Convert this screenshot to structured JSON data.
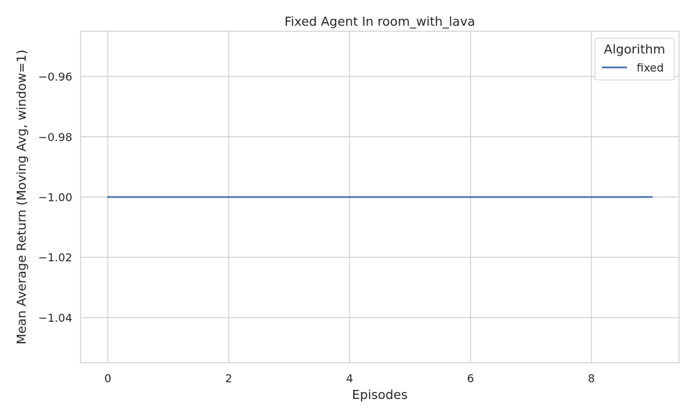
{
  "chart_data": {
    "type": "line",
    "title": "Fixed Agent In room_with_lava",
    "xlabel": "Episodes",
    "ylabel": "Mean Average Return (Moving Avg, window=1)",
    "xlim": [
      -0.45,
      9.45
    ],
    "ylim": [
      -1.055,
      -0.945
    ],
    "xticks": [
      0,
      2,
      4,
      6,
      8
    ],
    "yticks": [
      -0.96,
      -0.98,
      -1.0,
      -1.02,
      -1.04
    ],
    "xtick_labels": [
      "0",
      "2",
      "4",
      "6",
      "8"
    ],
    "ytick_labels": [
      "−0.96",
      "−0.98",
      "−1.00",
      "−1.02",
      "−1.04"
    ],
    "grid": true,
    "legend": {
      "title": "Algorithm",
      "placement": "top-right"
    },
    "series": [
      {
        "name": "fixed",
        "color": "#4c72b0",
        "x": [
          0,
          1,
          2,
          3,
          4,
          5,
          6,
          7,
          8,
          9
        ],
        "y": [
          -1.0,
          -1.0,
          -1.0,
          -1.0,
          -1.0,
          -1.0,
          -1.0,
          -1.0,
          -1.0,
          -1.0
        ]
      }
    ]
  }
}
